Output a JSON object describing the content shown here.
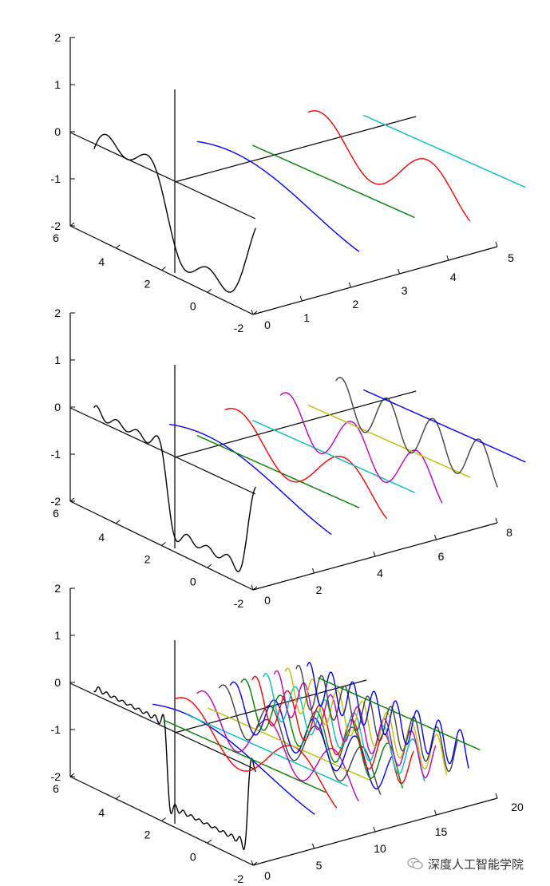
{
  "chart_data": [
    {
      "type": "line",
      "title": "",
      "dimensions": "3d",
      "zlim": [
        -2,
        2
      ],
      "z_ticks": [
        "2",
        "1",
        "0",
        "-1",
        "-2"
      ],
      "x_range": [
        -2,
        6
      ],
      "x_ticks": [
        "6",
        "4",
        "2",
        "0",
        "-2"
      ],
      "y_range": [
        0,
        5
      ],
      "y_ticks": [
        "0",
        "1",
        "2",
        "3",
        "4",
        "5"
      ],
      "reference_lines": [
        "x-axis",
        "y-axis",
        "z-axis"
      ],
      "series": [
        {
          "kind": "square-wave partial sum",
          "color": "#000000",
          "terms": 2
        },
        {
          "kind": "harmonic sine",
          "color": "#0000ff",
          "frequency": 1,
          "offset": 1
        },
        {
          "kind": "harmonic sine (flat)",
          "color": "#008000",
          "frequency": 2,
          "offset": 2
        },
        {
          "kind": "harmonic sine",
          "color": "#ff0000",
          "frequency": 3,
          "offset": 3
        },
        {
          "kind": "harmonic sine (flat)",
          "color": "#00bfbf",
          "frequency": 4,
          "offset": 4
        }
      ]
    },
    {
      "type": "line",
      "title": "",
      "dimensions": "3d",
      "zlim": [
        -2,
        2
      ],
      "z_ticks": [
        "2",
        "1",
        "0",
        "-1",
        "-2"
      ],
      "x_range": [
        -2,
        6
      ],
      "x_ticks": [
        "6",
        "4",
        "2",
        "0",
        "-2"
      ],
      "y_range": [
        0,
        8
      ],
      "y_ticks": [
        "0",
        "2",
        "4",
        "6",
        "8"
      ],
      "reference_lines": [
        "x-axis",
        "y-axis",
        "z-axis"
      ],
      "series": [
        {
          "kind": "square-wave partial sum",
          "color": "#000000",
          "terms": 4
        },
        {
          "kind": "harmonic sine",
          "color": "#0000ff",
          "frequency": 1,
          "offset": 1
        },
        {
          "kind": "harmonic sine (flat)",
          "color": "#008000",
          "frequency": 2,
          "offset": 2
        },
        {
          "kind": "harmonic sine",
          "color": "#ff0000",
          "frequency": 3,
          "offset": 3
        },
        {
          "kind": "harmonic sine (flat)",
          "color": "#00bfbf",
          "frequency": 4,
          "offset": 4
        },
        {
          "kind": "harmonic sine",
          "color": "#bf00bf",
          "frequency": 5,
          "offset": 5
        },
        {
          "kind": "harmonic sine (flat)",
          "color": "#bfbf00",
          "frequency": 6,
          "offset": 6
        },
        {
          "kind": "harmonic sine",
          "color": "#404040",
          "frequency": 7,
          "offset": 7
        },
        {
          "kind": "harmonic sine (flat)",
          "color": "#0000ff",
          "frequency": 8,
          "offset": 8
        }
      ]
    },
    {
      "type": "line",
      "title": "",
      "dimensions": "3d",
      "zlim": [
        -2,
        2
      ],
      "z_ticks": [
        "2",
        "1",
        "0",
        "-1",
        "-2"
      ],
      "x_range": [
        -2,
        6
      ],
      "x_ticks": [
        "6",
        "4",
        "2",
        "0",
        "-2"
      ],
      "y_range": [
        0,
        20
      ],
      "y_ticks": [
        "0",
        "5",
        "10",
        "15",
        "20"
      ],
      "reference_lines": [
        "x-axis",
        "y-axis",
        "z-axis"
      ],
      "series": [
        {
          "kind": "square-wave partial sum",
          "color": "#000000",
          "terms": 10
        },
        {
          "kind": "harmonic sine",
          "color": "#0000ff",
          "frequency": 1,
          "offset": 1
        },
        {
          "kind": "harmonic sine (flat)",
          "color": "#008000",
          "frequency": 2,
          "offset": 2
        },
        {
          "kind": "harmonic sine",
          "color": "#ff0000",
          "frequency": 3,
          "offset": 3
        },
        {
          "kind": "harmonic sine (flat)",
          "color": "#00bfbf",
          "frequency": 4,
          "offset": 4
        },
        {
          "kind": "harmonic sine",
          "color": "#bf00bf",
          "frequency": 5,
          "offset": 5
        },
        {
          "kind": "harmonic sine (flat)",
          "color": "#bfbf00",
          "frequency": 6,
          "offset": 6
        },
        {
          "kind": "harmonic sine",
          "color": "#404040",
          "frequency": 7,
          "offset": 7
        },
        {
          "kind": "harmonic sine",
          "color": "#0000ff",
          "frequency": 8,
          "offset": 8
        },
        {
          "kind": "harmonic sine",
          "color": "#008000",
          "frequency": 9,
          "offset": 9
        },
        {
          "kind": "harmonic sine",
          "color": "#ff0000",
          "frequency": 10,
          "offset": 10
        },
        {
          "kind": "harmonic sine",
          "color": "#00bfbf",
          "frequency": 11,
          "offset": 11
        },
        {
          "kind": "harmonic sine",
          "color": "#bf00bf",
          "frequency": 12,
          "offset": 12
        },
        {
          "kind": "harmonic sine",
          "color": "#bfbf00",
          "frequency": 13,
          "offset": 13
        },
        {
          "kind": "harmonic sine",
          "color": "#404040",
          "frequency": 14,
          "offset": 14
        },
        {
          "kind": "harmonic sine",
          "color": "#0000ff",
          "frequency": 15,
          "offset": 15
        },
        {
          "kind": "harmonic sine (flat)",
          "color": "#008000",
          "frequency": 16,
          "offset": 16
        }
      ]
    }
  ],
  "watermark": {
    "text": "深度人工智能学院",
    "icon": "wechat-icon"
  }
}
